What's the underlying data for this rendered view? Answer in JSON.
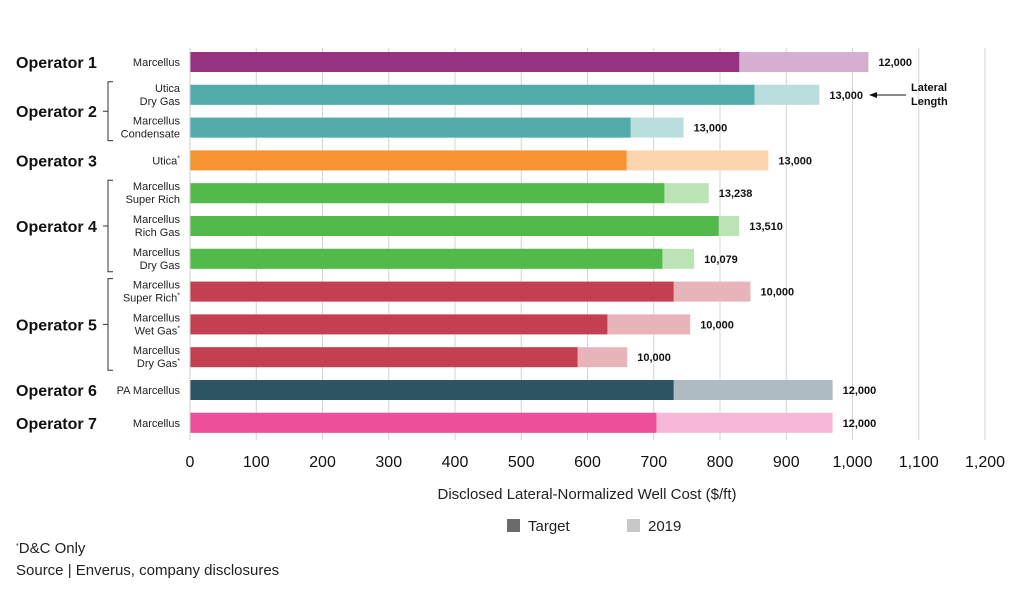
{
  "chart_data": {
    "type": "bar",
    "orientation": "horizontal",
    "stacked_overlay": true,
    "xlabel": "Disclosed Lateral-Normalized Well Cost ($/ft)",
    "xlim": [
      0,
      1200
    ],
    "xticks": [
      0,
      100,
      200,
      300,
      400,
      500,
      600,
      700,
      800,
      900,
      1000,
      1100,
      1200
    ],
    "xtick_labels": [
      "0",
      "100",
      "200",
      "300",
      "400",
      "500",
      "600",
      "700",
      "800",
      "900",
      "1,000",
      "1,100",
      "1,200"
    ],
    "grid": "vertical",
    "legend": {
      "placement": "bottom-center",
      "entries": [
        {
          "name": "Target",
          "color": "#6b6b6b"
        },
        {
          "name": "2019",
          "color": "#c8c8c8"
        }
      ]
    },
    "series_names": [
      "Target",
      "2019"
    ],
    "groups": [
      {
        "operator": "Operator 1",
        "rows": [
          {
            "label": [
              "Marcellus"
            ],
            "dc_only": false,
            "target": 829,
            "y2019": 1024,
            "lateral_length": "12,000",
            "color": "#963282",
            "light": "#d5afcf"
          }
        ]
      },
      {
        "operator": "Operator 2",
        "rows": [
          {
            "label": [
              "Utica",
              "Dry Gas"
            ],
            "dc_only": false,
            "target": 852,
            "y2019": 950,
            "lateral_length": "13,000",
            "color": "#52aaaa",
            "light": "#b9dedd"
          },
          {
            "label": [
              "Marcellus",
              "Condensate"
            ],
            "dc_only": false,
            "target": 665,
            "y2019": 745,
            "lateral_length": "13,000",
            "color": "#52aaaa",
            "light": "#b9dedd"
          }
        ]
      },
      {
        "operator": "Operator 3",
        "rows": [
          {
            "label": [
              "Utica"
            ],
            "dc_only": true,
            "target": 659,
            "y2019": 873,
            "lateral_length": "13,000",
            "color": "#f79431",
            "light": "#fcd4ae"
          }
        ]
      },
      {
        "operator": "Operator 4",
        "rows": [
          {
            "label": [
              "Marcellus",
              "Super Rich"
            ],
            "dc_only": false,
            "target": 716,
            "y2019": 783,
            "lateral_length": "13,238",
            "color": "#54b94b",
            "light": "#bbe3b6"
          },
          {
            "label": [
              "Marcellus",
              "Rich Gas"
            ],
            "dc_only": false,
            "target": 798,
            "y2019": 829,
            "lateral_length": "13,510",
            "color": "#54b94b",
            "light": "#bbe3b6"
          },
          {
            "label": [
              "Marcellus",
              "Dry Gas"
            ],
            "dc_only": false,
            "target": 713,
            "y2019": 761,
            "lateral_length": "10,079",
            "color": "#54b94b",
            "light": "#bbe3b6"
          }
        ]
      },
      {
        "operator": "Operator 5",
        "rows": [
          {
            "label": [
              "Marcellus",
              "Super Rich"
            ],
            "dc_only": true,
            "target": 730,
            "y2019": 846,
            "lateral_length": "10,000",
            "color": "#c2404f",
            "light": "#e7b5b9"
          },
          {
            "label": [
              "Marcellus",
              "Wet Gas"
            ],
            "dc_only": true,
            "target": 630,
            "y2019": 755,
            "lateral_length": "10,000",
            "color": "#c2404f",
            "light": "#e7b5b9"
          },
          {
            "label": [
              "Marcellus",
              "Dry Gas"
            ],
            "dc_only": true,
            "target": 585,
            "y2019": 660,
            "lateral_length": "10,000",
            "color": "#c2404f",
            "light": "#e7b5b9"
          }
        ]
      },
      {
        "operator": "Operator 6",
        "rows": [
          {
            "label": [
              "PA Marcellus"
            ],
            "dc_only": false,
            "target": 730,
            "y2019": 970,
            "lateral_length": "12,000",
            "color": "#2f5464",
            "light": "#aebcc1"
          }
        ]
      },
      {
        "operator": "Operator 7",
        "rows": [
          {
            "label": [
              "Marcellus"
            ],
            "dc_only": false,
            "target": 704,
            "y2019": 970,
            "lateral_length": "12,000",
            "color": "#ee4f9b",
            "light": "#f7b7d6"
          }
        ]
      }
    ],
    "annotation": {
      "text": [
        "Lateral",
        "Length"
      ],
      "points_to": "Operator 2 Utica Dry Gas lateral length label"
    }
  },
  "footnotes": {
    "dc_only": "D&C Only",
    "dc_marker": "*",
    "source": "Source | Enverus, company disclosures"
  }
}
